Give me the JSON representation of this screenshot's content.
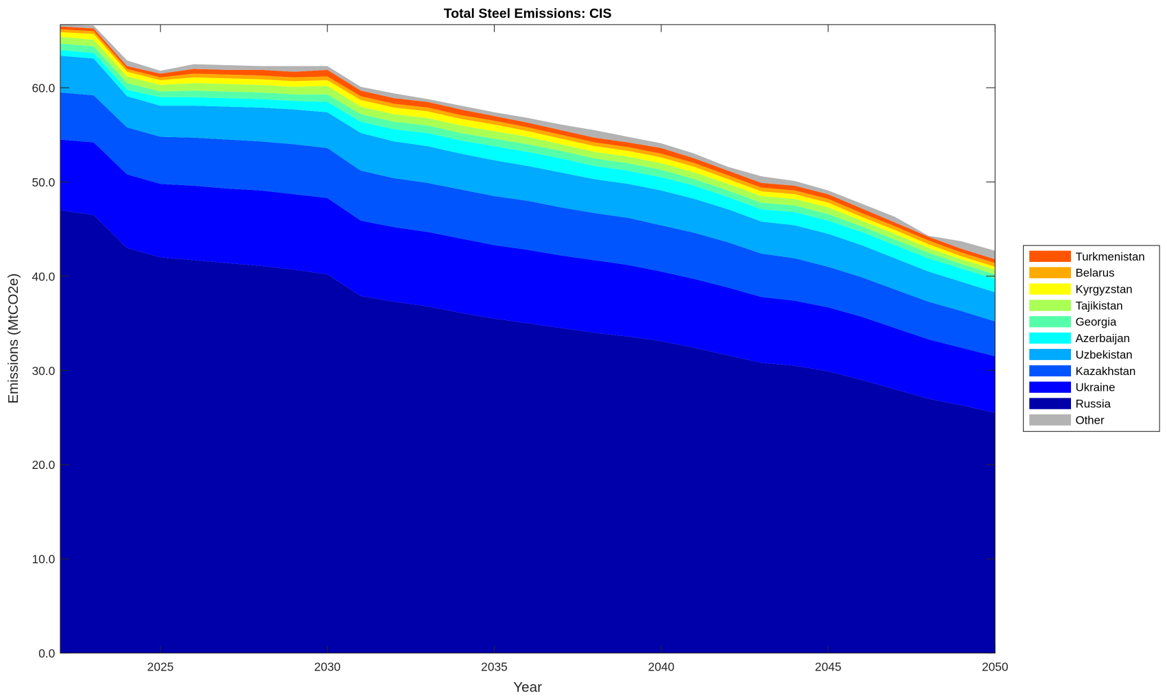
{
  "chart_data": {
    "type": "area",
    "stacked": true,
    "title": "Total Steel Emissions: CIS",
    "xlabel": "Year",
    "ylabel": "Emissions (MtCO2e)",
    "xlim": [
      2022,
      2050
    ],
    "ylim": [
      0,
      66.7
    ],
    "xticks": [
      2025,
      2030,
      2035,
      2040,
      2045,
      2050
    ],
    "yticks": [
      0,
      10,
      20,
      30,
      40,
      50,
      60
    ],
    "ytick_labels": [
      "0.0",
      "10.0",
      "20.0",
      "30.0",
      "40.0",
      "50.0",
      "60.0"
    ],
    "legend_position": "right-outside",
    "grid": false,
    "x": [
      2022,
      2023,
      2024,
      2025,
      2026,
      2027,
      2028,
      2029,
      2030,
      2031,
      2032,
      2033,
      2034,
      2035,
      2036,
      2037,
      2038,
      2039,
      2040,
      2041,
      2042,
      2043,
      2044,
      2045,
      2046,
      2047,
      2048,
      2049,
      2050
    ],
    "series": [
      {
        "name": "Russia",
        "color": "#0000AA",
        "values": [
          47.0,
          46.5,
          43.0,
          42.0,
          41.7,
          41.4,
          41.1,
          40.7,
          40.2,
          37.9,
          37.3,
          36.8,
          36.1,
          35.5,
          35.0,
          34.5,
          34.0,
          33.6,
          33.1,
          32.4,
          31.6,
          30.8,
          30.5,
          29.9,
          29.0,
          28.0,
          27.0,
          26.3,
          25.5
        ]
      },
      {
        "name": "Ukraine",
        "color": "#0000FF",
        "values": [
          7.5,
          7.7,
          7.8,
          7.8,
          7.9,
          7.9,
          8.0,
          8.0,
          8.1,
          8.0,
          7.9,
          7.9,
          7.9,
          7.8,
          7.8,
          7.7,
          7.7,
          7.6,
          7.4,
          7.3,
          7.2,
          7.0,
          6.9,
          6.8,
          6.7,
          6.5,
          6.3,
          6.1,
          6.0
        ]
      },
      {
        "name": "Kazakhstan",
        "color": "#0055FF",
        "values": [
          5.0,
          5.0,
          5.0,
          5.0,
          5.1,
          5.2,
          5.2,
          5.3,
          5.3,
          5.3,
          5.2,
          5.2,
          5.2,
          5.2,
          5.2,
          5.1,
          5.0,
          5.0,
          4.9,
          4.9,
          4.8,
          4.6,
          4.5,
          4.3,
          4.2,
          4.1,
          4.0,
          3.9,
          3.7
        ]
      },
      {
        "name": "Uzbekistan",
        "color": "#00AAFF",
        "values": [
          3.9,
          3.9,
          3.3,
          3.3,
          3.4,
          3.5,
          3.6,
          3.7,
          3.8,
          4.0,
          3.9,
          3.9,
          3.8,
          3.8,
          3.7,
          3.7,
          3.6,
          3.6,
          3.7,
          3.6,
          3.5,
          3.4,
          3.5,
          3.5,
          3.4,
          3.3,
          3.2,
          3.1,
          3.1
        ]
      },
      {
        "name": "Azerbaijan",
        "color": "#00FFFF",
        "values": [
          0.6,
          0.6,
          0.7,
          0.9,
          0.9,
          0.9,
          0.9,
          0.9,
          1.1,
          1.2,
          1.3,
          1.4,
          1.4,
          1.5,
          1.5,
          1.5,
          1.4,
          1.4,
          1.4,
          1.4,
          1.3,
          1.3,
          1.4,
          1.4,
          1.4,
          1.4,
          1.4,
          1.4,
          1.4
        ]
      },
      {
        "name": "Georgia",
        "color": "#55FFAA",
        "values": [
          0.7,
          0.7,
          0.7,
          0.6,
          0.7,
          0.7,
          0.7,
          0.7,
          0.8,
          0.8,
          0.8,
          0.8,
          0.8,
          0.8,
          0.8,
          0.8,
          0.8,
          0.8,
          0.8,
          0.7,
          0.7,
          0.7,
          0.7,
          0.7,
          0.6,
          0.6,
          0.6,
          0.5,
          0.5
        ]
      },
      {
        "name": "Tajikistan",
        "color": "#AAFF55",
        "values": [
          0.7,
          0.7,
          0.7,
          0.7,
          0.8,
          0.8,
          0.8,
          0.8,
          0.9,
          0.8,
          0.8,
          0.8,
          0.8,
          0.8,
          0.8,
          0.7,
          0.7,
          0.7,
          0.7,
          0.7,
          0.7,
          0.7,
          0.7,
          0.7,
          0.6,
          0.6,
          0.5,
          0.5,
          0.5
        ]
      },
      {
        "name": "Kyrgyzstan",
        "color": "#FFFF00",
        "values": [
          0.5,
          0.6,
          0.5,
          0.5,
          0.6,
          0.6,
          0.6,
          0.6,
          0.6,
          0.7,
          0.7,
          0.7,
          0.7,
          0.7,
          0.6,
          0.6,
          0.6,
          0.6,
          0.6,
          0.6,
          0.5,
          0.5,
          0.5,
          0.5,
          0.4,
          0.4,
          0.4,
          0.3,
          0.3
        ]
      },
      {
        "name": "Belarus",
        "color": "#FFAA00",
        "values": [
          0.3,
          0.3,
          0.3,
          0.3,
          0.4,
          0.4,
          0.4,
          0.4,
          0.4,
          0.4,
          0.4,
          0.4,
          0.4,
          0.4,
          0.4,
          0.4,
          0.4,
          0.4,
          0.4,
          0.4,
          0.4,
          0.4,
          0.4,
          0.4,
          0.4,
          0.4,
          0.4,
          0.4,
          0.4
        ]
      },
      {
        "name": "Turkmenistan",
        "color": "#FF5500",
        "values": [
          0.3,
          0.3,
          0.3,
          0.4,
          0.5,
          0.5,
          0.6,
          0.6,
          0.7,
          0.6,
          0.6,
          0.6,
          0.6,
          0.5,
          0.5,
          0.5,
          0.5,
          0.5,
          0.6,
          0.5,
          0.5,
          0.5,
          0.5,
          0.5,
          0.5,
          0.4,
          0.4,
          0.4,
          0.4
        ]
      },
      {
        "name": "Other",
        "color": "#B3B3B3",
        "values": [
          0.2,
          0.3,
          0.6,
          0.3,
          0.5,
          0.5,
          0.4,
          0.6,
          0.4,
          0.4,
          0.5,
          0.3,
          0.4,
          0.4,
          0.5,
          0.6,
          0.8,
          0.6,
          0.5,
          0.5,
          0.4,
          0.7,
          0.5,
          0.4,
          0.5,
          0.6,
          0.1,
          0.8,
          0.9
        ]
      }
    ],
    "legend_order": [
      "Turkmenistan",
      "Belarus",
      "Kyrgyzstan",
      "Tajikistan",
      "Georgia",
      "Azerbaijan",
      "Uzbekistan",
      "Kazakhstan",
      "Ukraine",
      "Russia",
      "Other"
    ]
  }
}
